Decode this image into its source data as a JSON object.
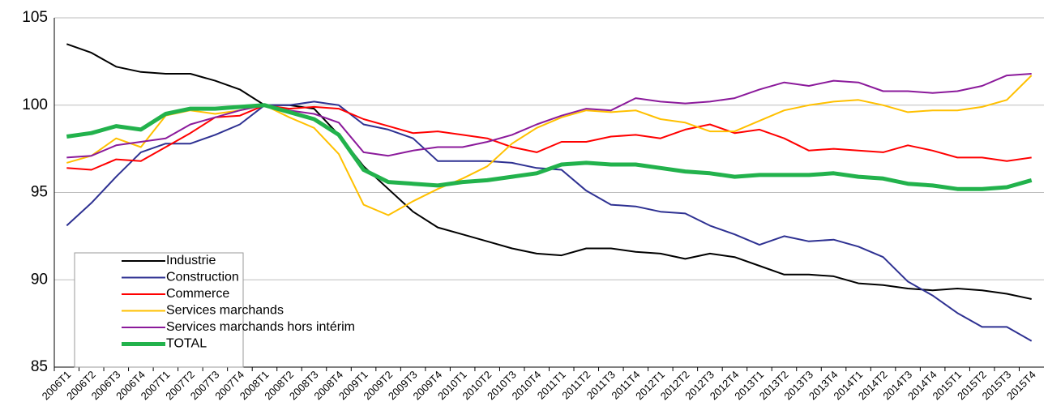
{
  "chart_data": {
    "type": "line",
    "categories": [
      "2006T1",
      "2006T2",
      "2006T3",
      "2006T4",
      "2007T1",
      "2007T2",
      "2007T3",
      "2007T4",
      "2008T1",
      "2008T2",
      "2008T3",
      "2008T4",
      "2009T1",
      "2009T2",
      "2009T3",
      "2009T4",
      "2010T1",
      "2010T2",
      "2010T3",
      "2010T4",
      "2011T1",
      "2011T2",
      "2011T3",
      "2011T4",
      "2012T1",
      "2012T2",
      "2012T3",
      "2012T4",
      "2013T1",
      "2013T2",
      "2013T3",
      "2013T4",
      "2014T1",
      "2014T2",
      "2014T3",
      "2014T4",
      "2015T1",
      "2015T2",
      "2015T3",
      "2015T4"
    ],
    "series": [
      {
        "name": "Industrie",
        "color": "#000000",
        "width": 2,
        "values": [
          103.5,
          103.0,
          102.2,
          101.9,
          101.8,
          101.8,
          101.4,
          100.9,
          100.0,
          100.0,
          99.8,
          98.3,
          96.5,
          95.2,
          93.9,
          93.0,
          92.6,
          92.2,
          91.8,
          91.5,
          91.4,
          91.8,
          91.8,
          91.6,
          91.5,
          91.2,
          91.5,
          91.3,
          90.8,
          90.3,
          90.3,
          90.2,
          89.8,
          89.7,
          89.5,
          89.4,
          89.5,
          89.4,
          89.2,
          88.9
        ]
      },
      {
        "name": "Construction",
        "color": "#2e3192",
        "width": 2,
        "values": [
          93.1,
          94.4,
          95.9,
          97.3,
          97.8,
          97.8,
          98.3,
          98.9,
          100.0,
          100.0,
          100.2,
          100.0,
          98.9,
          98.6,
          98.1,
          96.8,
          96.8,
          96.8,
          96.7,
          96.4,
          96.3,
          95.1,
          94.3,
          94.2,
          93.9,
          93.8,
          93.1,
          92.6,
          92.0,
          92.5,
          92.2,
          92.3,
          91.9,
          91.3,
          89.9,
          89.1,
          88.1,
          87.3,
          87.3,
          86.5
        ]
      },
      {
        "name": "Commerce",
        "color": "#ff0000",
        "width": 2,
        "values": [
          96.4,
          96.3,
          96.9,
          96.8,
          97.6,
          98.4,
          99.3,
          99.4,
          100.0,
          99.8,
          99.9,
          99.8,
          99.2,
          98.8,
          98.4,
          98.5,
          98.3,
          98.1,
          97.6,
          97.3,
          97.9,
          97.9,
          98.2,
          98.3,
          98.1,
          98.6,
          98.9,
          98.4,
          98.6,
          98.1,
          97.4,
          97.5,
          97.4,
          97.3,
          97.7,
          97.4,
          97.0,
          97.0,
          96.8,
          97.0
        ]
      },
      {
        "name": "Services marchands",
        "color": "#ffc000",
        "width": 2,
        "values": [
          96.7,
          97.1,
          98.1,
          97.6,
          99.4,
          99.7,
          99.5,
          99.7,
          100.0,
          99.3,
          98.7,
          97.2,
          94.3,
          93.7,
          94.5,
          95.2,
          95.8,
          96.5,
          97.8,
          98.7,
          99.3,
          99.7,
          99.6,
          99.7,
          99.2,
          99.0,
          98.5,
          98.5,
          99.1,
          99.7,
          100.0,
          100.2,
          100.3,
          100.0,
          99.6,
          99.7,
          99.7,
          99.9,
          100.3,
          101.7
        ]
      },
      {
        "name": "Services marchands hors intérim",
        "color": "#8b1a9b",
        "width": 2,
        "values": [
          97.0,
          97.1,
          97.7,
          97.9,
          98.1,
          98.9,
          99.3,
          99.7,
          100.0,
          99.7,
          99.5,
          99.0,
          97.3,
          97.1,
          97.4,
          97.6,
          97.6,
          97.9,
          98.3,
          98.9,
          99.4,
          99.8,
          99.7,
          100.4,
          100.2,
          100.1,
          100.2,
          100.4,
          100.9,
          101.3,
          101.1,
          101.4,
          101.3,
          100.8,
          100.8,
          100.7,
          100.8,
          101.1,
          101.7,
          101.8
        ]
      },
      {
        "name": "TOTAL",
        "color": "#22b24c",
        "width": 5,
        "values": [
          98.2,
          98.4,
          98.8,
          98.6,
          99.5,
          99.8,
          99.8,
          99.9,
          100.0,
          99.6,
          99.2,
          98.3,
          96.3,
          95.6,
          95.5,
          95.4,
          95.6,
          95.7,
          95.9,
          96.1,
          96.6,
          96.7,
          96.6,
          96.6,
          96.4,
          96.2,
          96.1,
          95.9,
          96.0,
          96.0,
          96.0,
          96.1,
          95.9,
          95.8,
          95.5,
          95.4,
          95.2,
          95.2,
          95.3,
          95.7
        ]
      }
    ],
    "ylim": [
      85,
      105
    ],
    "yticks": [
      85,
      90,
      95,
      100,
      105
    ],
    "grid": true,
    "legend": "lower left"
  }
}
